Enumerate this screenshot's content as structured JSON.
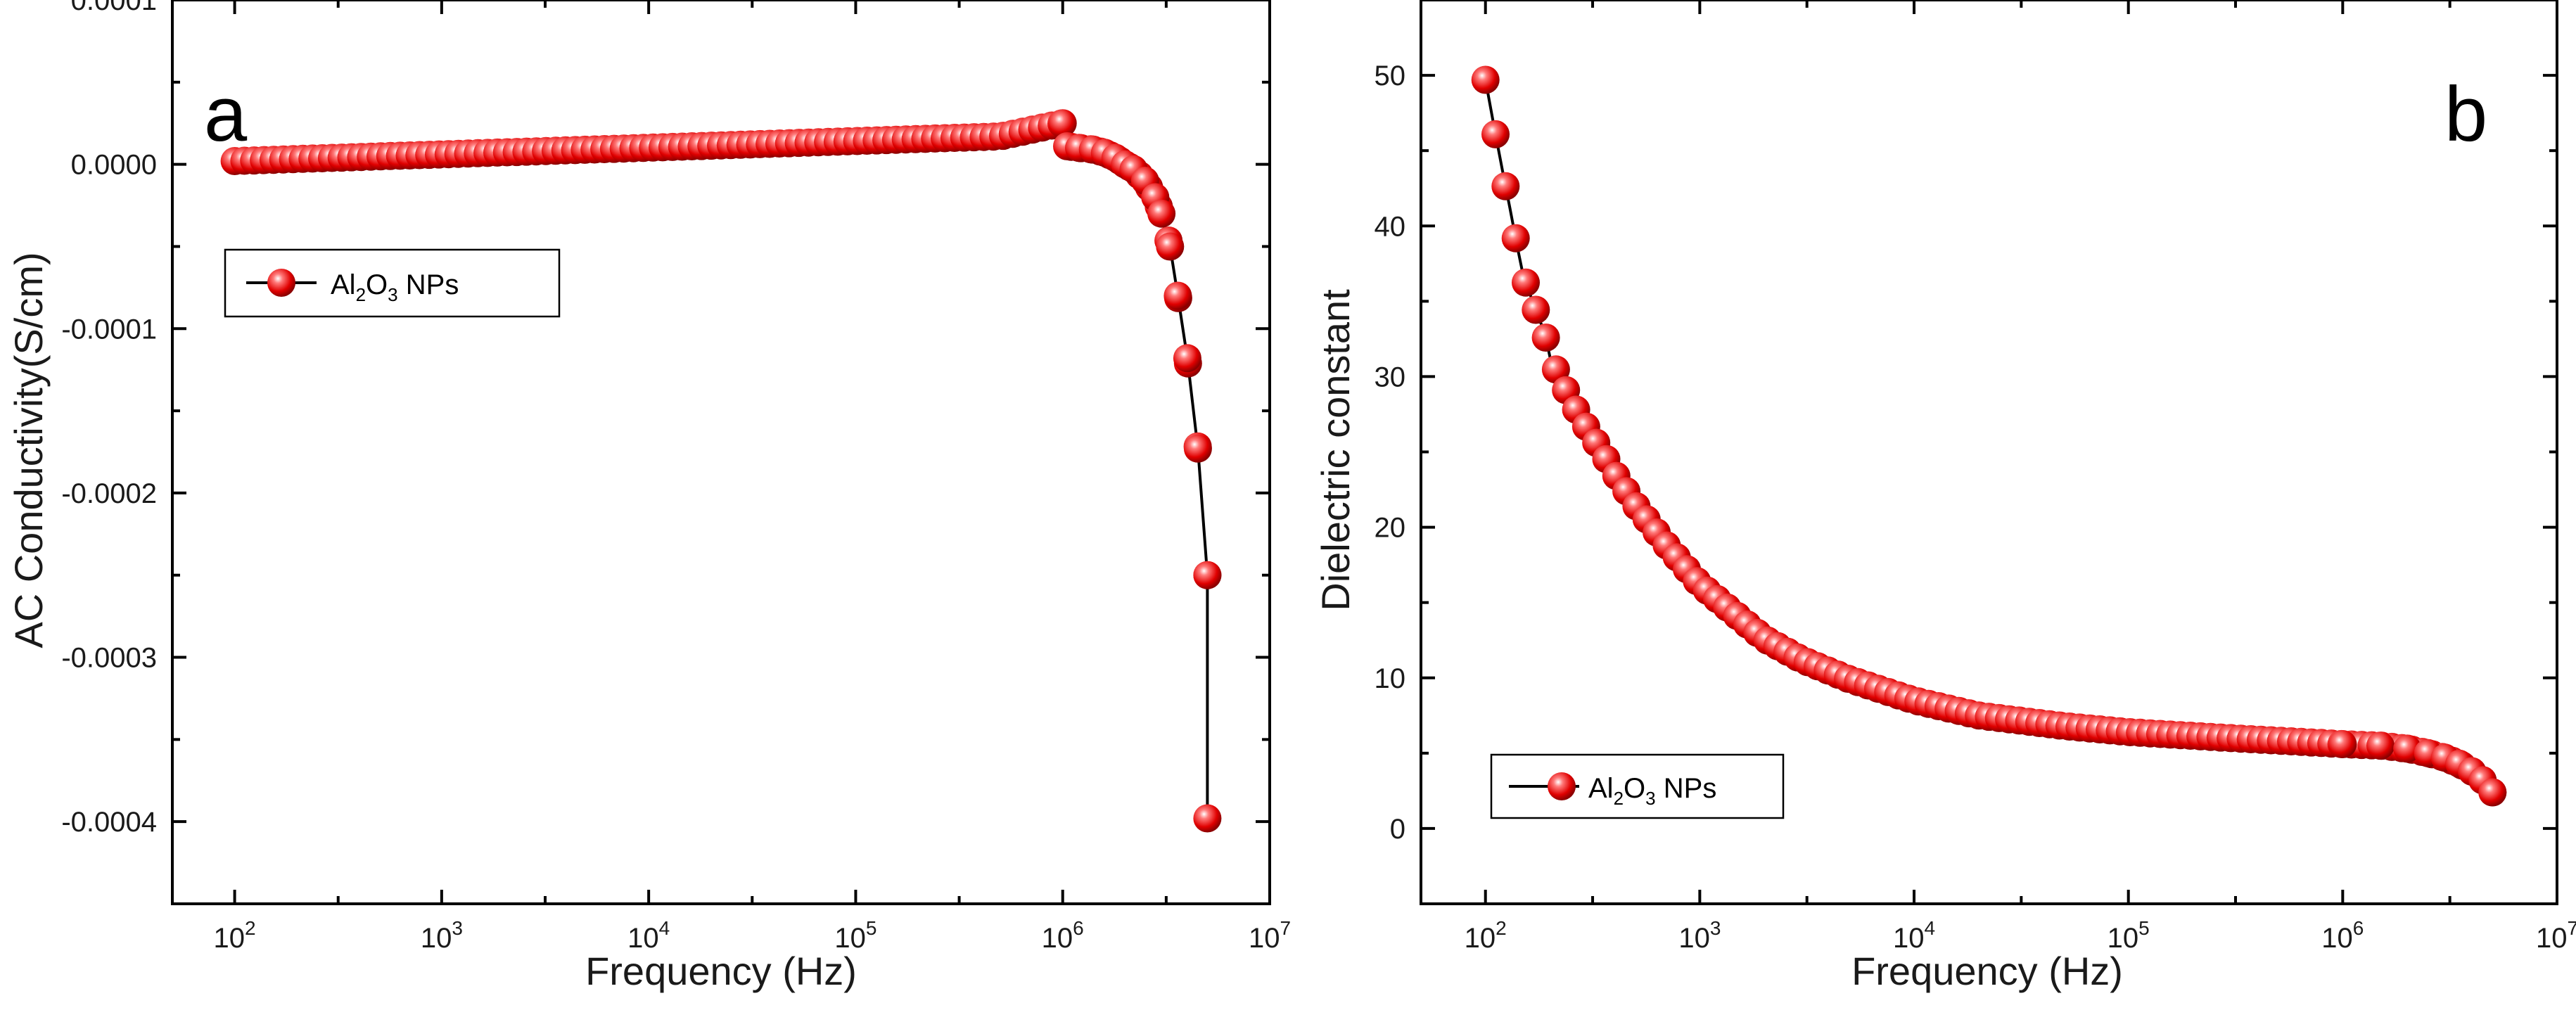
{
  "chart_data": [
    {
      "type": "line",
      "panel_label": "a",
      "xlabel": "Frequency (Hz)",
      "ylabel": "AC Conductivity(S/cm)",
      "xscale": "log",
      "xlim": [
        50,
        10000000
      ],
      "ylim": [
        -0.00045,
        0.0001
      ],
      "x_tick_labels": [
        {
          "value": 100,
          "base": "10",
          "exp": "2"
        },
        {
          "value": 1000,
          "base": "10",
          "exp": "3"
        },
        {
          "value": 10000,
          "base": "10",
          "exp": "4"
        },
        {
          "value": 100000,
          "base": "10",
          "exp": "5"
        },
        {
          "value": 1000000,
          "base": "10",
          "exp": "6"
        },
        {
          "value": 10000000,
          "base": "10",
          "exp": "7"
        }
      ],
      "y_tick_labels": [
        {
          "value": 0.0001,
          "label": "0.0001"
        },
        {
          "value": 0.0,
          "label": "0.0000"
        },
        {
          "value": -0.0001,
          "label": "-0.0001"
        },
        {
          "value": -0.0002,
          "label": "-0.0002"
        },
        {
          "value": -0.0003,
          "label": "-0.0003"
        },
        {
          "value": -0.0004,
          "label": "-0.0004"
        }
      ],
      "legend": {
        "position": "upper-left",
        "entries": [
          {
            "main": "Al",
            "sub1": "2",
            "mid": "O",
            "sub2": "3",
            "tail": " NPs"
          }
        ]
      },
      "series": [
        {
          "name": "Al2O3 NPs",
          "marker": "sphere",
          "color": "#e00000",
          "x": [
            100,
            500000,
            1000000,
            1050000,
            1200000,
            1400000,
            1600000,
            1800000,
            2000000,
            2200000,
            2500000,
            2800000,
            3000000,
            3300000,
            3600000,
            4000000,
            4500000,
            5000000
          ],
          "y": [
            2e-06,
            1.7e-05,
            2.5e-05,
            1.1e-05,
            1e-05,
            9e-06,
            7e-06,
            4e-06,
            0.0,
            -3e-06,
            -1e-05,
            -2e-05,
            -3e-05,
            -5e-05,
            -8e-05,
            -0.000118,
            -0.000173,
            -0.00025
          ],
          "extra_x": [
            5000000
          ],
          "extra_y": [
            -0.000398
          ]
        }
      ]
    },
    {
      "type": "line",
      "panel_label": "b",
      "xlabel": "Frequency (Hz)",
      "ylabel": "Dielectric constant",
      "xscale": "log",
      "xlim": [
        50,
        10000000
      ],
      "ylim": [
        -5,
        55
      ],
      "x_tick_labels": [
        {
          "value": 100,
          "base": "10",
          "exp": "2"
        },
        {
          "value": 1000,
          "base": "10",
          "exp": "3"
        },
        {
          "value": 10000,
          "base": "10",
          "exp": "4"
        },
        {
          "value": 100000,
          "base": "10",
          "exp": "5"
        },
        {
          "value": 1000000,
          "base": "10",
          "exp": "6"
        },
        {
          "value": 10000000,
          "base": "10",
          "exp": "7"
        }
      ],
      "y_tick_labels": [
        {
          "value": 0,
          "label": "0"
        },
        {
          "value": 10,
          "label": "10"
        },
        {
          "value": 20,
          "label": "20"
        },
        {
          "value": 30,
          "label": "30"
        },
        {
          "value": 40,
          "label": "40"
        },
        {
          "value": 50,
          "label": "50"
        }
      ],
      "legend": {
        "position": "lower-left",
        "entries": [
          {
            "main": "Al",
            "sub1": "2",
            "mid": "O",
            "sub2": "3",
            "tail": " NPs"
          }
        ]
      },
      "series": [
        {
          "name": "Al2O3 NPs",
          "marker": "sphere",
          "color": "#e00000",
          "x": [
            100,
            110,
            120,
            130,
            140,
            150,
            170,
            190,
            200,
            230,
            260,
            300,
            350,
            400,
            500,
            700,
            1000,
            2000,
            3000,
            5000,
            10000,
            20000,
            50000,
            100000,
            300000,
            1000000,
            1500000,
            2000000,
            2500000,
            3000000,
            3500000,
            4000000,
            4500000,
            5000000
          ],
          "y": [
            49.7,
            46.5,
            43.7,
            41.2,
            38.8,
            36.7,
            34.6,
            32.8,
            31.3,
            29.5,
            28.0,
            26.5,
            25.0,
            23.6,
            21.5,
            18.8,
            16.2,
            12.6,
            11.2,
            9.9,
            8.5,
            7.5,
            6.8,
            6.4,
            6.0,
            5.6,
            5.5,
            5.3,
            5.0,
            4.7,
            4.3,
            3.8,
            3.2,
            2.4
          ]
        }
      ]
    }
  ]
}
